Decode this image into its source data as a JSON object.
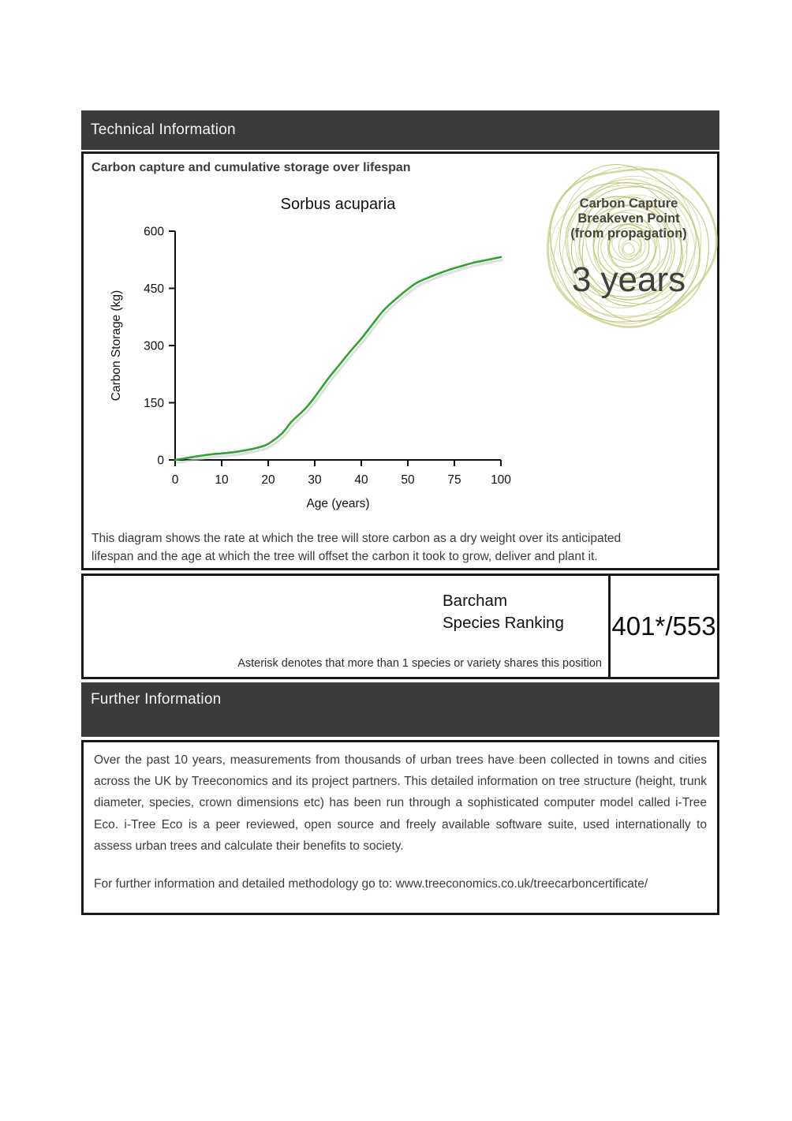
{
  "colors": {
    "bar_bg": "#3b3b3b",
    "bar_text": "#f5f5f5",
    "border": "#1a1a1a",
    "heading": "#3d3d3d",
    "curve": "#2ea52e",
    "curve_shadow": "#c6c6c6",
    "ring_main": "#b5bb5e",
    "ring_light": "#c6cb7f",
    "chart_text": "#111111"
  },
  "sections": {
    "technical": {
      "title": "Technical Information"
    },
    "chart_section": {
      "heading": "Carbon capture and cumulative storage over lifespan",
      "description_lines": [
        "This diagram shows the rate at which the tree will store carbon as a dry weight over its anticipated",
        "lifespan and the age at which the tree will offset the carbon it took to grow, deliver and plant it."
      ]
    },
    "badge": {
      "line1": "Carbon Capture",
      "line2": "Breakeven Point",
      "line3": "(from propagation)",
      "value": "3 years"
    },
    "ranking": {
      "label_line1": "Barcham",
      "label_line2": "Species Ranking",
      "value": "401*/553",
      "note": "Asterisk denotes that more than 1 species or variety shares this position"
    },
    "further": {
      "title": "Further Information",
      "paragraph": "Over the past 10 years, measurements from thousands of urban trees have been collected in towns and cities across the UK by Treeconomics and its project partners. This detailed information on tree structure (height, trunk diameter, species, crown dimensions etc) has been run through a sophisticated computer model called i-Tree Eco. i-Tree Eco is a peer reviewed, open source and freely available software suite, used internationally to assess urban trees and calculate their benefits to society.",
      "link_line": "For further information and detailed methodology go to: www.treeconomics.co.uk/treecarboncertificate/"
    }
  },
  "chart_data": {
    "type": "line",
    "title": "Sorbus acuparia",
    "xlabel": "Age (years)",
    "ylabel": "Carbon Storage (kg)",
    "x_ticks": [
      0,
      10,
      20,
      30,
      40,
      50,
      75,
      100
    ],
    "y_ticks": [
      0,
      150,
      300,
      450,
      600
    ],
    "ylim": [
      0,
      600
    ],
    "axis_note": "x ticks equally spaced; scale compresses above age 50",
    "series": [
      {
        "name": "Cumulative carbon storage (kg)",
        "color": "#2ea52e",
        "points": [
          [
            0,
            0
          ],
          [
            2,
            4
          ],
          [
            5,
            10
          ],
          [
            8,
            15
          ],
          [
            10,
            17
          ],
          [
            13,
            21
          ],
          [
            15,
            25
          ],
          [
            18,
            33
          ],
          [
            20,
            42
          ],
          [
            23,
            70
          ],
          [
            25,
            100
          ],
          [
            28,
            135
          ],
          [
            30,
            165
          ],
          [
            33,
            215
          ],
          [
            35,
            245
          ],
          [
            38,
            290
          ],
          [
            40,
            318
          ],
          [
            43,
            365
          ],
          [
            45,
            395
          ],
          [
            48,
            428
          ],
          [
            50,
            448
          ],
          [
            55,
            465
          ],
          [
            60,
            476
          ],
          [
            65,
            486
          ],
          [
            70,
            495
          ],
          [
            75,
            503
          ],
          [
            80,
            510
          ],
          [
            85,
            517
          ],
          [
            90,
            522
          ],
          [
            95,
            527
          ],
          [
            100,
            532
          ]
        ]
      }
    ]
  }
}
